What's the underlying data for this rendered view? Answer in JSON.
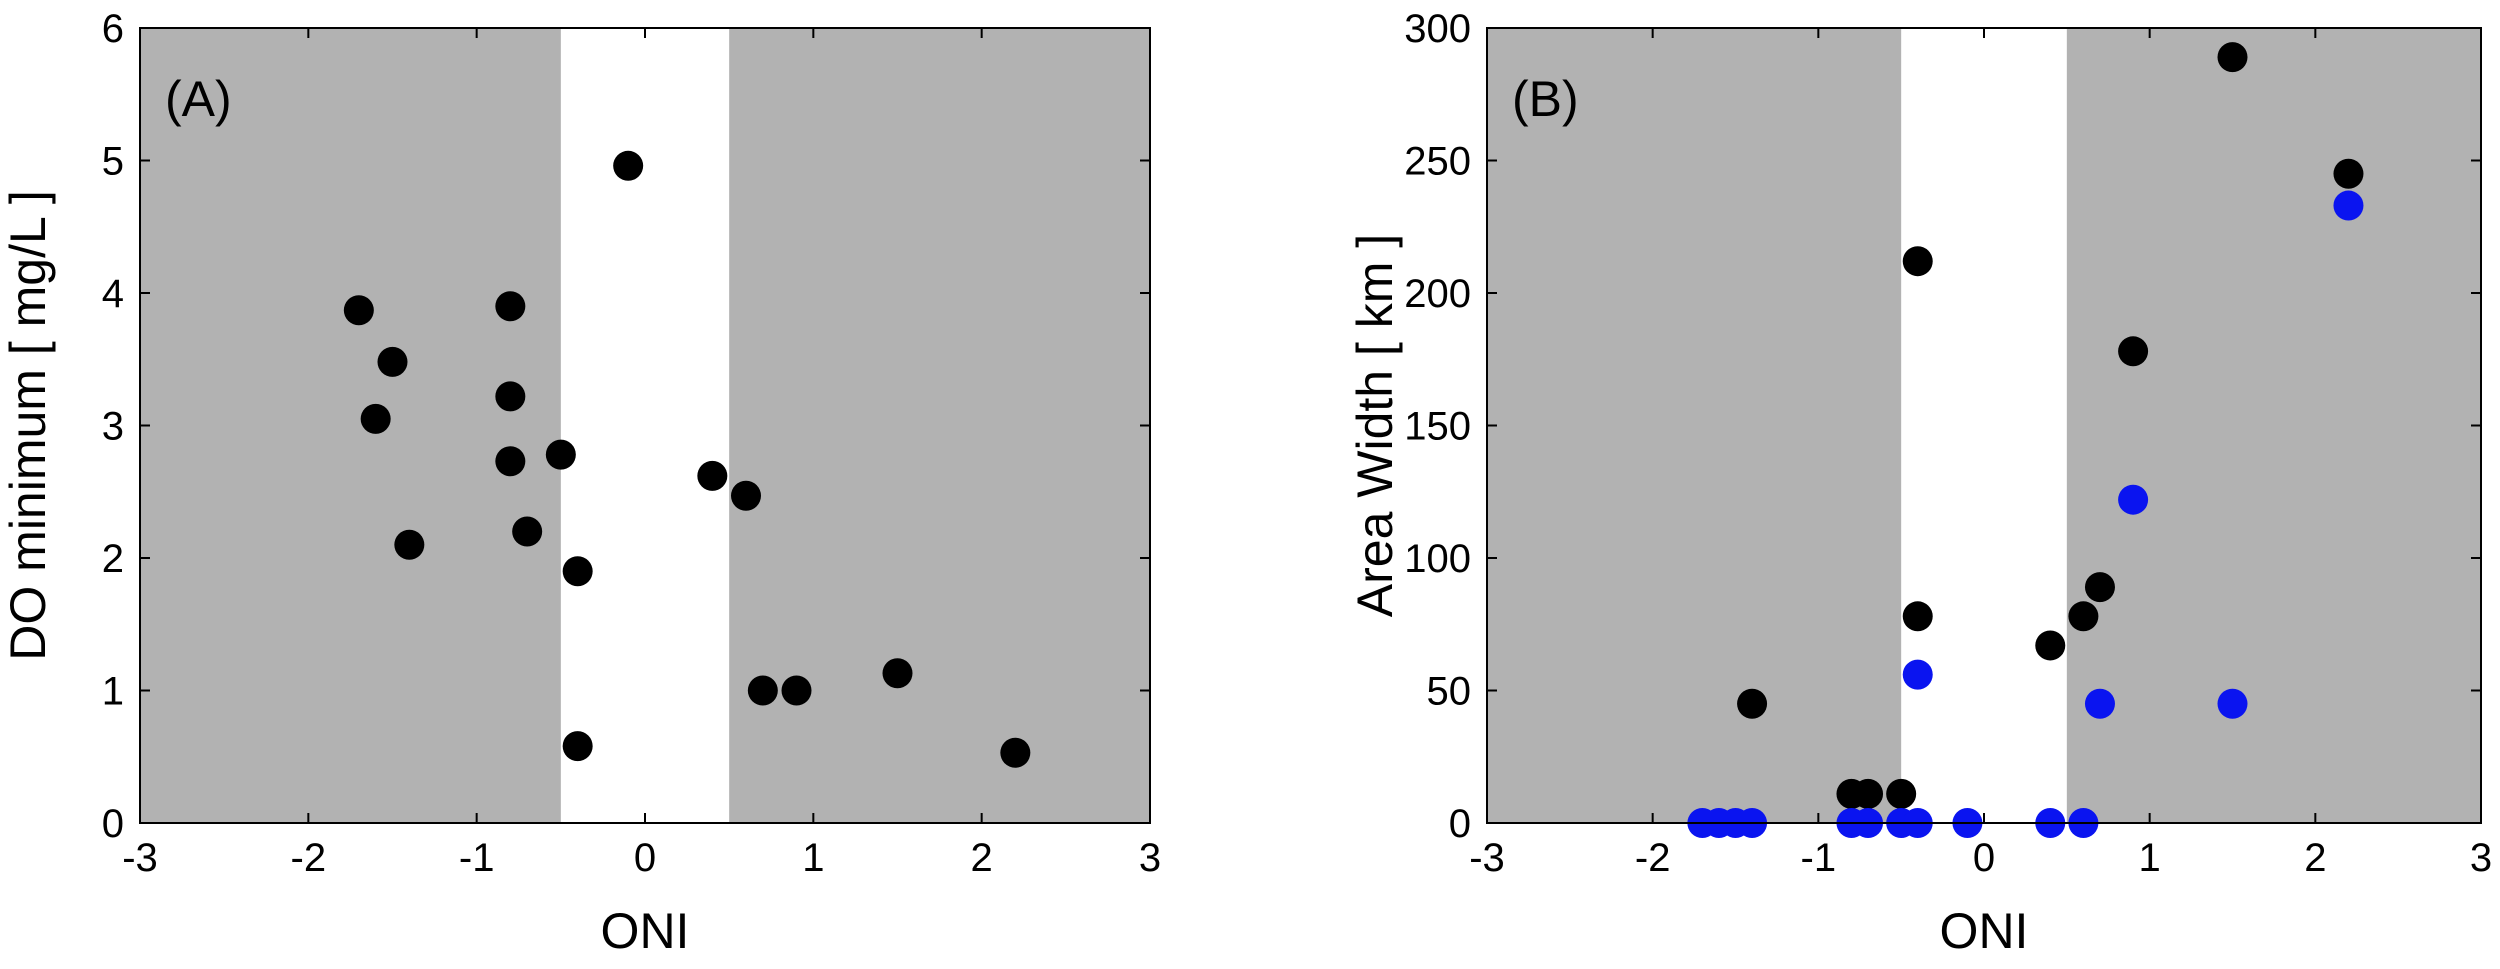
{
  "chart_data": [
    {
      "type": "scatter",
      "panel_label": "(A)",
      "xlabel": "ONI",
      "ylabel": "DO minimum [ mg/L ]",
      "xlim": [
        -3,
        3
      ],
      "ylim": [
        0,
        6
      ],
      "xticks": [
        -3,
        -2,
        -1,
        0,
        1,
        2,
        3
      ],
      "yticks": [
        0,
        1,
        2,
        3,
        4,
        5,
        6
      ],
      "xtick_labels": [
        "-3",
        "-2",
        "-1",
        "0",
        "1",
        "2",
        "3"
      ],
      "ytick_labels": [
        "0",
        "1",
        "2",
        "3",
        "4",
        "5",
        "6"
      ],
      "shaded_x_ranges": [
        [
          -3,
          -0.5
        ],
        [
          0.5,
          3
        ]
      ],
      "colors": {
        "shade": "#b2b2b2",
        "background": "#ffffff"
      },
      "series": [
        {
          "color": "#000000",
          "points": [
            [
              -1.7,
              3.87
            ],
            [
              -1.5,
              3.48
            ],
            [
              -1.6,
              3.05
            ],
            [
              -1.4,
              2.1
            ],
            [
              -0.8,
              3.9
            ],
            [
              -0.8,
              3.22
            ],
            [
              -0.8,
              2.73
            ],
            [
              -0.7,
              2.2
            ],
            [
              -0.5,
              2.78
            ],
            [
              -0.4,
              1.9
            ],
            [
              -0.4,
              0.58
            ],
            [
              -0.1,
              4.96
            ],
            [
              0.4,
              2.62
            ],
            [
              0.6,
              2.47
            ],
            [
              0.7,
              1.0
            ],
            [
              0.9,
              1.0
            ],
            [
              1.5,
              1.13
            ],
            [
              2.2,
              0.53
            ]
          ]
        }
      ]
    },
    {
      "type": "scatter",
      "panel_label": "(B)",
      "xlabel": "ONI",
      "ylabel": "Area Width [ km ]",
      "xlim": [
        -3,
        3
      ],
      "ylim": [
        0,
        300
      ],
      "xticks": [
        -3,
        -2,
        -1,
        0,
        1,
        2,
        3
      ],
      "yticks": [
        0,
        50,
        100,
        150,
        200,
        250,
        300
      ],
      "xtick_labels": [
        "-3",
        "-2",
        "-1",
        "0",
        "1",
        "2",
        "3"
      ],
      "ytick_labels": [
        "0",
        "50",
        "100",
        "150",
        "200",
        "250",
        "300"
      ],
      "shaded_x_ranges": [
        [
          -3,
          -0.5
        ],
        [
          0.5,
          3
        ]
      ],
      "colors": {
        "shade": "#b2b2b2",
        "background": "#ffffff"
      },
      "series": [
        {
          "color": "#000000",
          "points": [
            [
              -1.4,
              45
            ],
            [
              -0.8,
              11
            ],
            [
              -0.7,
              11
            ],
            [
              -0.5,
              11
            ],
            [
              -0.4,
              212
            ],
            [
              -0.4,
              78
            ],
            [
              0.4,
              67
            ],
            [
              0.6,
              78
            ],
            [
              0.7,
              89
            ],
            [
              0.9,
              178
            ],
            [
              1.5,
              289
            ],
            [
              2.2,
              245
            ]
          ]
        },
        {
          "color": "#0a14f0",
          "points": [
            [
              -1.7,
              0
            ],
            [
              -1.6,
              0
            ],
            [
              -1.5,
              0
            ],
            [
              -1.4,
              0
            ],
            [
              -0.8,
              0
            ],
            [
              -0.7,
              0
            ],
            [
              -0.5,
              0
            ],
            [
              -0.4,
              0
            ],
            [
              -0.1,
              0
            ],
            [
              0.4,
              0
            ],
            [
              0.6,
              0
            ],
            [
              -0.4,
              56
            ],
            [
              0.7,
              45
            ],
            [
              0.9,
              122
            ],
            [
              1.5,
              45
            ],
            [
              2.2,
              233
            ]
          ]
        }
      ]
    }
  ]
}
